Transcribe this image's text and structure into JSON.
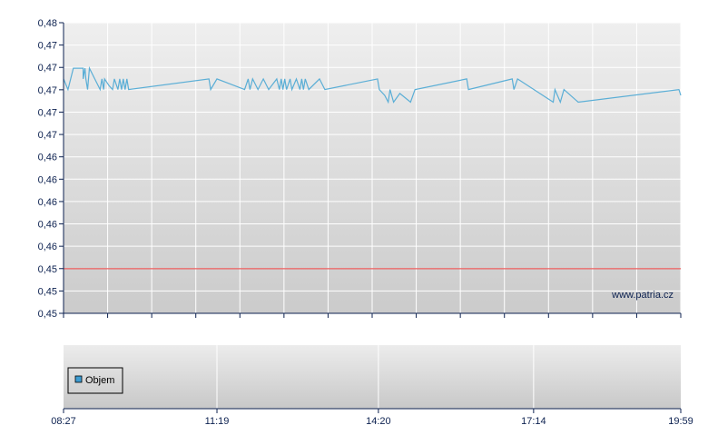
{
  "chart_data": [
    {
      "type": "line",
      "x_range": [
        "08:27",
        "19:59"
      ],
      "ylim": [
        0.45,
        0.48
      ],
      "y_tick_labels": [
        "0,48",
        "0,47",
        "0,47",
        "0,47",
        "0,47",
        "0,47",
        "0,46",
        "0,46",
        "0,46",
        "0,46",
        "0,46",
        "0,45",
        "0,45",
        "0,45"
      ],
      "grid": true,
      "line_color": "#5aaed6",
      "reference_line": {
        "value": 0.4546,
        "color": "#e83a3a"
      },
      "watermark": "www.patria.cz",
      "series": [
        {
          "points": [
            [
              "08:27",
              0.4742
            ],
            [
              "08:32",
              0.4731
            ],
            [
              "08:38",
              0.4753
            ],
            [
              "08:49",
              0.4753
            ],
            [
              "08:49",
              0.4742
            ],
            [
              "08:51",
              0.4753
            ],
            [
              "08:52",
              0.4742
            ],
            [
              "08:54",
              0.4731
            ],
            [
              "08:56",
              0.4753
            ],
            [
              "09:02",
              0.4742
            ],
            [
              "09:08",
              0.4731
            ],
            [
              "09:10",
              0.4742
            ],
            [
              "09:12",
              0.4731
            ],
            [
              "09:13",
              0.4742
            ],
            [
              "09:18",
              0.4735
            ],
            [
              "09:22",
              0.4731
            ],
            [
              "09:24",
              0.4742
            ],
            [
              "09:28",
              0.4731
            ],
            [
              "09:30",
              0.4742
            ],
            [
              "09:32",
              0.4731
            ],
            [
              "09:34",
              0.4742
            ],
            [
              "09:36",
              0.4731
            ],
            [
              "09:38",
              0.4742
            ],
            [
              "09:40",
              0.4731
            ],
            [
              "11:10",
              0.4742
            ],
            [
              "11:12",
              0.4731
            ],
            [
              "11:19",
              0.4742
            ],
            [
              "11:50",
              0.4731
            ],
            [
              "11:54",
              0.4742
            ],
            [
              "11:56",
              0.4731
            ],
            [
              "11:59",
              0.4742
            ],
            [
              "12:05",
              0.4731
            ],
            [
              "12:11",
              0.4742
            ],
            [
              "12:17",
              0.4731
            ],
            [
              "12:26",
              0.4742
            ],
            [
              "12:29",
              0.4731
            ],
            [
              "12:31",
              0.4742
            ],
            [
              "12:33",
              0.4731
            ],
            [
              "12:35",
              0.4742
            ],
            [
              "12:37",
              0.4731
            ],
            [
              "12:41",
              0.4742
            ],
            [
              "12:43",
              0.4731
            ],
            [
              "12:48",
              0.4742
            ],
            [
              "12:52",
              0.4731
            ],
            [
              "12:54",
              0.4742
            ],
            [
              "12:56",
              0.4731
            ],
            [
              "12:58",
              0.4742
            ],
            [
              "13:02",
              0.4731
            ],
            [
              "13:14",
              0.4742
            ],
            [
              "13:20",
              0.4731
            ],
            [
              "14:19",
              0.4742
            ],
            [
              "14:21",
              0.4731
            ],
            [
              "14:27",
              0.4725
            ],
            [
              "14:31",
              0.4718
            ],
            [
              "14:33",
              0.4731
            ],
            [
              "14:37",
              0.4718
            ],
            [
              "14:44",
              0.4727
            ],
            [
              "14:56",
              0.4718
            ],
            [
              "15:01",
              0.4731
            ],
            [
              "15:59",
              0.4742
            ],
            [
              "16:01",
              0.4731
            ],
            [
              "16:50",
              0.4742
            ],
            [
              "16:52",
              0.4731
            ],
            [
              "16:56",
              0.4742
            ],
            [
              "17:36",
              0.4718
            ],
            [
              "17:38",
              0.4731
            ],
            [
              "17:44",
              0.4718
            ],
            [
              "17:48",
              0.4731
            ],
            [
              "18:04",
              0.4718
            ],
            [
              "19:57",
              0.4731
            ],
            [
              "19:59",
              0.4725
            ]
          ]
        }
      ]
    },
    {
      "type": "bar",
      "legend": [
        "Objem"
      ],
      "legend_color": "#3d9cd2",
      "x_tick_labels": [
        "08:27",
        "11:19",
        "14:20",
        "17:14",
        "19:59"
      ],
      "series": [
        {
          "name": "Objem",
          "values": []
        }
      ]
    }
  ]
}
